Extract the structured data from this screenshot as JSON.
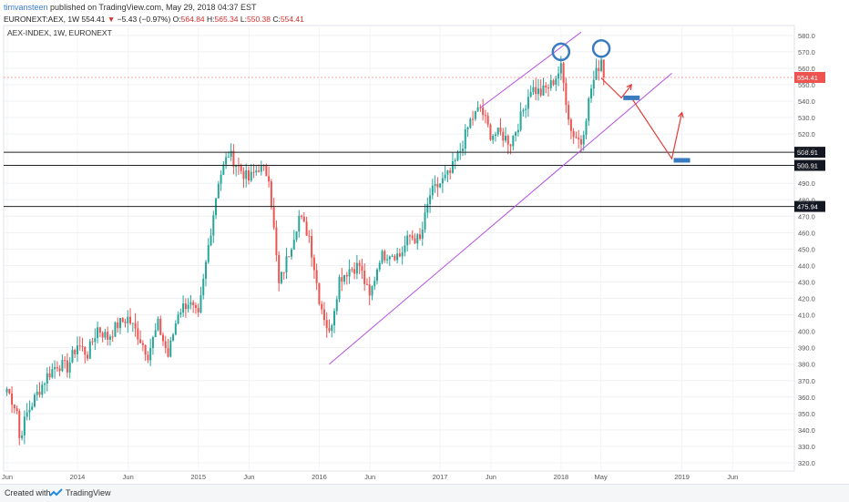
{
  "header": {
    "author": "timvansteen",
    "published": "published on TradingView.com, May 29, 2018 04:37 EST",
    "symbol": "EURONEXT:AEX, 1W",
    "last": "554.41",
    "change_arrow": "▼",
    "change": "−5.43 (−0.97%)",
    "o_label": "O:",
    "o": "564.84",
    "h_label": "H:",
    "h": "565.34",
    "l_label": "L:",
    "l": "550.38",
    "c_label": "C:",
    "c": "554.41"
  },
  "footer": {
    "created": "Created with",
    "brand": "TradingView"
  },
  "chart_data": {
    "type": "candlestick",
    "title": "AEX-INDEX, 1W, EURONEXT",
    "ylim": [
      315,
      586
    ],
    "y_ticks": [
      320,
      330,
      340,
      350,
      360,
      370,
      380,
      390,
      400,
      410,
      420,
      430,
      440,
      450,
      460,
      470,
      480,
      490,
      500,
      510,
      520,
      530,
      540,
      550,
      560,
      570,
      580
    ],
    "x_ticks": [
      "Jun",
      "2014",
      "Jun",
      "2015",
      "Jun",
      "2016",
      "Jun",
      "2017",
      "Jun",
      "2018",
      "May",
      "2019",
      "Jun"
    ],
    "horizontal_levels": [
      {
        "value": 508.91,
        "label": "508.91"
      },
      {
        "value": 500.91,
        "label": "500.91"
      },
      {
        "value": 475.94,
        "label": "475.94"
      }
    ],
    "price_label": {
      "value": 554.41,
      "label": "554.41",
      "color": "#ef5350"
    },
    "weekly_path": [
      [
        "2013-06",
        365
      ],
      [
        "2013-07",
        352
      ],
      [
        "2013-07",
        335
      ],
      [
        "2013-08",
        350
      ],
      [
        "2013-09",
        362
      ],
      [
        "2013-10",
        373
      ],
      [
        "2013-11",
        380
      ],
      [
        "2013-12",
        378
      ],
      [
        "2014-01",
        392
      ],
      [
        "2014-02",
        386
      ],
      [
        "2014-03",
        402
      ],
      [
        "2014-04",
        396
      ],
      [
        "2014-05",
        404
      ],
      [
        "2014-06",
        408
      ],
      [
        "2014-07",
        398
      ],
      [
        "2014-08",
        386
      ],
      [
        "2014-09",
        404
      ],
      [
        "2014-10",
        385
      ],
      [
        "2014-11",
        412
      ],
      [
        "2014-12",
        418
      ],
      [
        "2015-01",
        408
      ],
      [
        "2015-02",
        452
      ],
      [
        "2015-03",
        492
      ],
      [
        "2015-04",
        508
      ],
      [
        "2015-05",
        500
      ],
      [
        "2015-06",
        492
      ],
      [
        "2015-07",
        500
      ],
      [
        "2015-08",
        495
      ],
      [
        "2015-09",
        428
      ],
      [
        "2015-10",
        448
      ],
      [
        "2015-11",
        470
      ],
      [
        "2015-12",
        458
      ],
      [
        "2016-01",
        420
      ],
      [
        "2016-02",
        398
      ],
      [
        "2016-03",
        432
      ],
      [
        "2016-04",
        438
      ],
      [
        "2016-05",
        440
      ],
      [
        "2016-06",
        420
      ],
      [
        "2016-07",
        445
      ],
      [
        "2016-08",
        448
      ],
      [
        "2016-09",
        446
      ],
      [
        "2016-10",
        458
      ],
      [
        "2016-11",
        455
      ],
      [
        "2016-12",
        483
      ],
      [
        "2017-01",
        490
      ],
      [
        "2017-02",
        496
      ],
      [
        "2017-03",
        510
      ],
      [
        "2017-04",
        528
      ],
      [
        "2017-05",
        536
      ],
      [
        "2017-06",
        520
      ],
      [
        "2017-07",
        520
      ],
      [
        "2017-08",
        515
      ],
      [
        "2017-09",
        530
      ],
      [
        "2017-10",
        548
      ],
      [
        "2017-11",
        545
      ],
      [
        "2017-12",
        550
      ],
      [
        "2018-01",
        560
      ],
      [
        "2018-02",
        522
      ],
      [
        "2018-03",
        515
      ],
      [
        "2018-04",
        548
      ],
      [
        "2018-05",
        566
      ],
      [
        "2018-05",
        554.41
      ]
    ],
    "annotations": {
      "channel_upper": [
        [
          "2017-05",
          536
        ],
        [
          "2018-03",
          582
        ]
      ],
      "channel_lower": [
        [
          "2016-02",
          380
        ],
        [
          "2018-12",
          557
        ]
      ],
      "circles": [
        [
          "2018-01",
          570
        ],
        [
          "2018-05",
          572
        ]
      ],
      "projection": [
        [
          "2018-05",
          554
        ],
        [
          "2018-07",
          542
        ],
        [
          "2018-08",
          550
        ]
      ],
      "projection2": [
        [
          "2018-08",
          542
        ],
        [
          "2018-12",
          505
        ],
        [
          "2019-01",
          533
        ]
      ],
      "markers": [
        [
          "2018-08",
          542
        ],
        [
          "2019-01",
          504
        ]
      ]
    }
  }
}
